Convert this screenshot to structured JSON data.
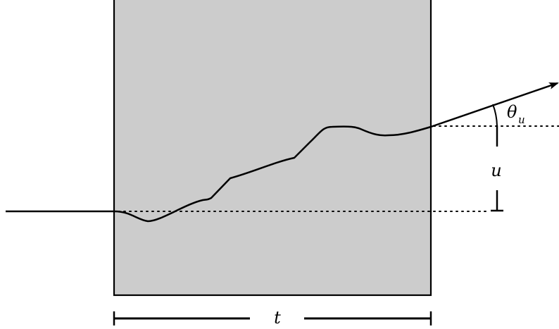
{
  "colors": {
    "slab_fill": "#cccccc",
    "stroke": "#000000",
    "background": "#ffffff"
  },
  "labels": {
    "thickness": "t",
    "displacement": "u",
    "angle_symbol": "θ",
    "angle_subscript": "u"
  }
}
